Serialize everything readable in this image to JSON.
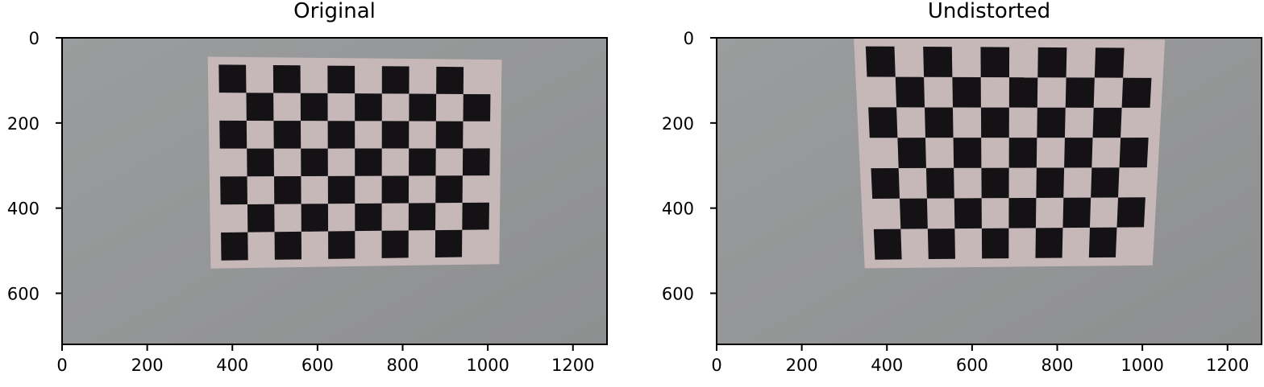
{
  "panels": [
    {
      "title": "Original",
      "x_ticks": [
        "0",
        "200",
        "400",
        "600",
        "800",
        "1000",
        "1200"
      ],
      "y_ticks": [
        "0",
        "200",
        "400",
        "600"
      ],
      "board": {
        "tl": [
          368,
          63
        ],
        "tr": [
          1007,
          69
        ],
        "br": [
          1002,
          514
        ],
        "bl": [
          374,
          523
        ],
        "cols": 10,
        "rows": 7
      }
    },
    {
      "title": "Undistorted",
      "x_ticks": [
        "0",
        "200",
        "400",
        "600",
        "800",
        "1000",
        "1200"
      ],
      "y_ticks": [
        "0",
        "200",
        "400",
        "600"
      ],
      "board": {
        "tl": [
          350,
          20
        ],
        "tr": [
          1025,
          24
        ],
        "br": [
          1000,
          515
        ],
        "bl": [
          372,
          521
        ],
        "cols": 10,
        "rows": 7
      }
    }
  ],
  "image": {
    "width": 1280,
    "height": 720
  },
  "colors": {
    "wall": "#969697",
    "paper": "#c6b8b9",
    "square": "#141214"
  }
}
